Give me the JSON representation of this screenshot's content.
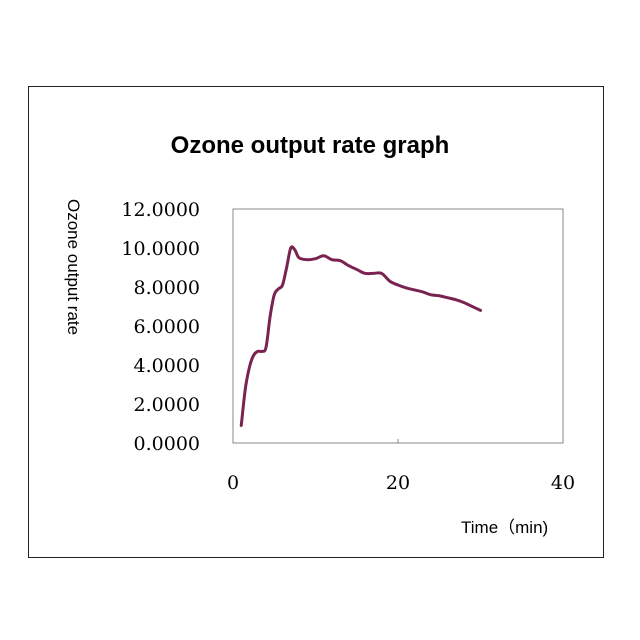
{
  "chart_data": {
    "type": "line",
    "title": "Ozone output rate graph",
    "xlabel": "Time（min)",
    "ylabel": "Ozone output rate",
    "xlim": [
      0,
      40
    ],
    "ylim": [
      0,
      12
    ],
    "x_ticks": [
      "0",
      "20",
      "40"
    ],
    "y_ticks": [
      "0.0000",
      "2.0000",
      "4.0000",
      "6.0000",
      "8.0000",
      "10.0000",
      "12.0000"
    ],
    "grid": false,
    "legend": "none",
    "series_color": "#7a2350",
    "series": [
      {
        "x": [
          1,
          1.5,
          2,
          2.5,
          3,
          3.5,
          4,
          4.5,
          5,
          5.5,
          6,
          6.5,
          7,
          7.5,
          8,
          9,
          10,
          11,
          12,
          13,
          14,
          15,
          16,
          17,
          18,
          19,
          20,
          21,
          22,
          23,
          24,
          25,
          26,
          27,
          28,
          29,
          30
        ],
        "y": [
          0.9,
          2.8,
          3.9,
          4.5,
          4.7,
          4.7,
          4.9,
          6.5,
          7.6,
          7.9,
          8.1,
          9.0,
          10.0,
          9.9,
          9.5,
          9.4,
          9.45,
          9.6,
          9.4,
          9.35,
          9.1,
          8.9,
          8.7,
          8.7,
          8.7,
          8.3,
          8.1,
          7.95,
          7.85,
          7.75,
          7.6,
          7.55,
          7.45,
          7.35,
          7.2,
          7.0,
          6.8
        ]
      }
    ]
  }
}
